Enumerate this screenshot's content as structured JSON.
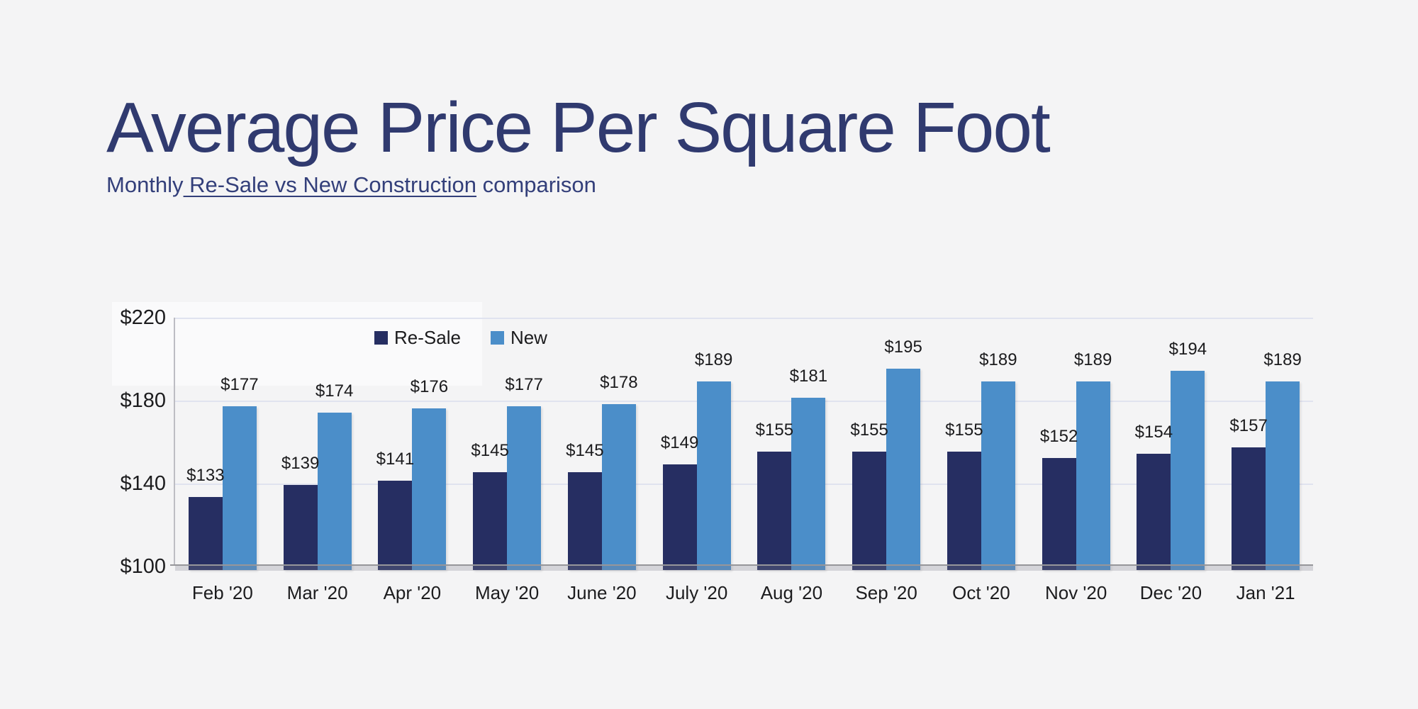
{
  "header": {
    "title": "Average Price Per Square Foot",
    "subtitle_prefix": "Monthly",
    "subtitle_underlined": " Re-Sale vs New Construction",
    "subtitle_suffix": " comparison",
    "title_color": "#303a6f"
  },
  "chart_data": {
    "type": "bar",
    "title": "Average Price Per Square Foot",
    "subtitle": "Monthly Re-Sale vs New Construction comparison",
    "categories": [
      "Feb '20",
      "Mar '20",
      "Apr '20",
      "May '20",
      "June '20",
      "July '20",
      "Aug '20",
      "Sep '20",
      "Oct '20",
      "Nov '20",
      "Dec '20",
      "Jan '21"
    ],
    "series": [
      {
        "name": "Re-Sale",
        "color": "#262e62",
        "values": [
          133,
          139,
          141,
          145,
          145,
          149,
          155,
          155,
          155,
          152,
          154,
          157
        ]
      },
      {
        "name": "New",
        "color": "#4b8ec9",
        "values": [
          177,
          174,
          176,
          177,
          178,
          189,
          181,
          195,
          189,
          189,
          194,
          189
        ]
      }
    ],
    "value_prefix": "$",
    "data_labels": true,
    "ylim": [
      100,
      220
    ],
    "y_ticks": [
      {
        "value": 220,
        "label": "$220"
      },
      {
        "value": 180,
        "label": "$180"
      },
      {
        "value": 140,
        "label": "$140"
      },
      {
        "value": 100,
        "label": "$100"
      }
    ],
    "grid": true,
    "gridline_color": "#e0e3ef",
    "axis_line_color": "#96969a",
    "legend_position": "top-center-inside",
    "background": "#f4f4f5"
  }
}
